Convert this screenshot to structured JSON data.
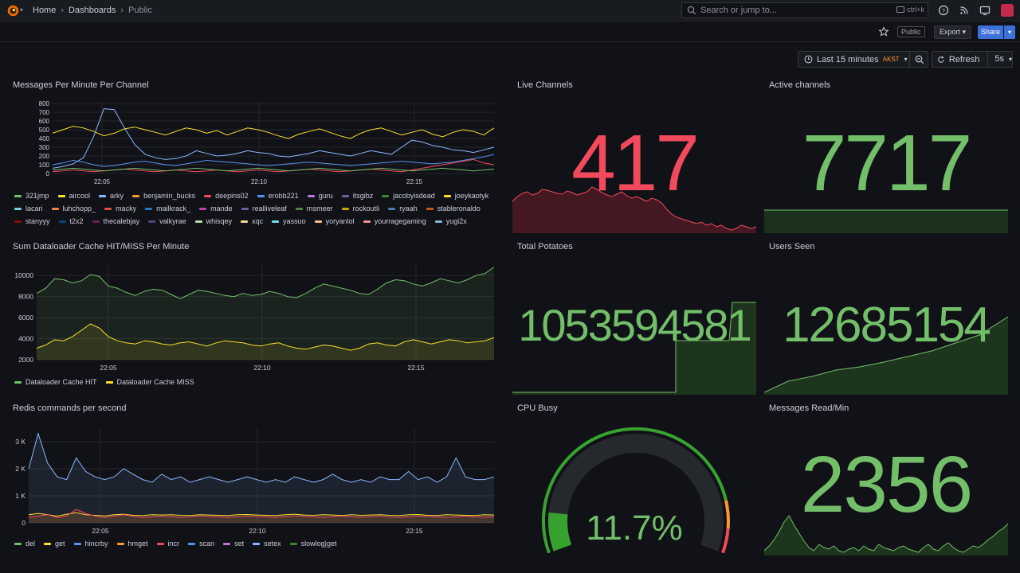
{
  "header": {
    "breadcrumbs": [
      "Home",
      "Dashboards",
      "Public"
    ],
    "search_placeholder": "Search or jump to...",
    "search_shortcut": "ctrl+k"
  },
  "toolbar": {
    "public_badge": "Public",
    "export_label": "Export",
    "share_label": "Share",
    "time_range": "Last 15 minutes",
    "timezone": "AKST",
    "refresh_label": "Refresh",
    "refresh_interval": "5s"
  },
  "colors": {
    "green": "#73bf69",
    "yellow": "#fade2a",
    "blue": "#5794f2",
    "orange": "#ff9830",
    "red": "#f2495c",
    "purple": "#b877d9",
    "accent": "#3d71d9"
  },
  "panels": {
    "messages_per_minute": {
      "title": "Messages Per Minute Per Channel",
      "legend": [
        {
          "name": "321jmp",
          "color": "#73bf69"
        },
        {
          "name": "aircool",
          "color": "#fade2a"
        },
        {
          "name": "arky",
          "color": "#8ab8ff"
        },
        {
          "name": "benjamin_bucks",
          "color": "#ff9830"
        },
        {
          "name": "deepins02",
          "color": "#f2495c"
        },
        {
          "name": "erobb221",
          "color": "#5794f2"
        },
        {
          "name": "guru",
          "color": "#b877d9"
        },
        {
          "name": "itsgibz",
          "color": "#705da0"
        },
        {
          "name": "jacobyisdead",
          "color": "#37872d"
        },
        {
          "name": "joeykaotyk",
          "color": "#fade2a"
        },
        {
          "name": "lacari",
          "color": "#6ed0e0"
        },
        {
          "name": "luhchopp_",
          "color": "#ef843c"
        },
        {
          "name": "macky",
          "color": "#e24d42"
        },
        {
          "name": "mailkrack_",
          "color": "#1f78c1"
        },
        {
          "name": "mande",
          "color": "#ba43a9"
        },
        {
          "name": "realliveleaf",
          "color": "#705da0"
        },
        {
          "name": "rnsmeer",
          "color": "#508642"
        },
        {
          "name": "rockoutli",
          "color": "#cca300"
        },
        {
          "name": "ryaah",
          "color": "#447ebc"
        },
        {
          "name": "stableronaldo",
          "color": "#c15c17"
        },
        {
          "name": "stanyyy",
          "color": "#890f02"
        },
        {
          "name": "t2x2",
          "color": "#0a437c"
        },
        {
          "name": "thecalebjay",
          "color": "#6d1f62"
        },
        {
          "name": "valkyrae",
          "color": "#584477"
        },
        {
          "name": "whisqey",
          "color": "#b7dbab"
        },
        {
          "name": "xqc",
          "color": "#f4d598"
        },
        {
          "name": "yassuo",
          "color": "#70dbed"
        },
        {
          "name": "yoryanlol",
          "color": "#f9ba8f"
        },
        {
          "name": "yourragegaming",
          "color": "#f29191"
        },
        {
          "name": "yugi2x",
          "color": "#82b5d8"
        }
      ]
    },
    "live_channels": {
      "title": "Live Channels",
      "value": "417",
      "color": "#f2495c"
    },
    "active_channels": {
      "title": "Active channels",
      "value": "7717",
      "color": "#73bf69"
    },
    "dataloader": {
      "title": "Sum Dataloader Cache HIT/MISS Per Minute",
      "legend": [
        {
          "name": "Dataloader Cache HIT",
          "color": "#73bf69"
        },
        {
          "name": "Dataloader Cache MISS",
          "color": "#fade2a"
        }
      ]
    },
    "total_potatoes": {
      "title": "Total Potatoes",
      "value": "1053594581",
      "color": "#73bf69"
    },
    "users_seen": {
      "title": "Users Seen",
      "value": "12685154",
      "color": "#73bf69"
    },
    "redis": {
      "title": "Redis commands per second",
      "legend": [
        {
          "name": "del",
          "color": "#73bf69"
        },
        {
          "name": "get",
          "color": "#fade2a"
        },
        {
          "name": "hincrby",
          "color": "#5794f2"
        },
        {
          "name": "hmget",
          "color": "#ff9830"
        },
        {
          "name": "incr",
          "color": "#f2495c"
        },
        {
          "name": "scan",
          "color": "#5794f2"
        },
        {
          "name": "set",
          "color": "#b877d9"
        },
        {
          "name": "setex",
          "color": "#8ab8ff"
        },
        {
          "name": "slowlog|get",
          "color": "#37872d"
        }
      ]
    },
    "cpu_busy": {
      "title": "CPU Busy",
      "value": "11.7%",
      "percent": 11.7
    },
    "messages_read": {
      "title": "Messages Read/Min",
      "value": "2356",
      "color": "#73bf69"
    }
  },
  "chart_data": [
    {
      "type": "line",
      "title": "Messages Per Minute Per Channel",
      "ylim": [
        0,
        800
      ],
      "y_ticks": [
        "800",
        "700",
        "600",
        "500",
        "400",
        "300",
        "200",
        "100",
        "0"
      ],
      "x_ticks": [
        "22:05",
        "22:10",
        "22:15"
      ],
      "series": [
        {
          "name": "aircool",
          "values": [
            460,
            500,
            540,
            520,
            480,
            430,
            460,
            510,
            530,
            500,
            470,
            440,
            480,
            520,
            500,
            460,
            490,
            440,
            480,
            520,
            500,
            470,
            430,
            400,
            450,
            480,
            510,
            470,
            430,
            400,
            460,
            500,
            520,
            480,
            440,
            470,
            500,
            450,
            420,
            470,
            500,
            480,
            440,
            520
          ]
        },
        {
          "name": "arky",
          "values": [
            60,
            80,
            110,
            180,
            420,
            740,
            730,
            520,
            330,
            220,
            180,
            160,
            170,
            200,
            260,
            230,
            200,
            210,
            230,
            260,
            240,
            230,
            200,
            190,
            210,
            230,
            260,
            240,
            220,
            200,
            230,
            260,
            240,
            220,
            300,
            380,
            360,
            320,
            300,
            270,
            260,
            240,
            270,
            300
          ]
        },
        {
          "name": "erobb221",
          "values": [
            100,
            120,
            150,
            130,
            100,
            80,
            90,
            110,
            130,
            140,
            120,
            100,
            90,
            110,
            130,
            150,
            140,
            130,
            120,
            110,
            100,
            90,
            100,
            110,
            120,
            130,
            120,
            110,
            100,
            90,
            100,
            110,
            120,
            130,
            140,
            130,
            120,
            110,
            120,
            130,
            150,
            170,
            190,
            220
          ]
        },
        {
          "name": "deepins02",
          "values": [
            20,
            30,
            40,
            30,
            20,
            30,
            40,
            50,
            40,
            30,
            20,
            30,
            40,
            30,
            20,
            30,
            40,
            30,
            20,
            30,
            40,
            30,
            20,
            30,
            40,
            50,
            40,
            30,
            20,
            30,
            40,
            50,
            40,
            30,
            20,
            40,
            60,
            80,
            100,
            120,
            140,
            160,
            120,
            100
          ]
        },
        {
          "name": "321jmp",
          "values": [
            40,
            50,
            60,
            50,
            40,
            30,
            40,
            50,
            60,
            50,
            40,
            30,
            40,
            50,
            60,
            50,
            40,
            30,
            40,
            50,
            60,
            50,
            40,
            30,
            40,
            50,
            60,
            50,
            40,
            30,
            40,
            50,
            60,
            50,
            40,
            30,
            40,
            50,
            60,
            50,
            40,
            30,
            40,
            50
          ]
        }
      ]
    },
    {
      "type": "area",
      "title": "Sum Dataloader Cache HIT/MISS Per Minute",
      "ylim": [
        2000,
        11000
      ],
      "y_ticks": [
        "10000",
        "8000",
        "6000",
        "4000",
        "2000"
      ],
      "x_ticks": [
        "22:05",
        "22:10",
        "22:15"
      ],
      "series": [
        {
          "name": "Dataloader Cache HIT",
          "values": [
            8300,
            8800,
            9700,
            9600,
            9300,
            9500,
            10100,
            9900,
            9000,
            8800,
            8400,
            8100,
            8500,
            8700,
            8600,
            8200,
            7800,
            8200,
            8600,
            8500,
            8300,
            8100,
            8000,
            8300,
            8100,
            8200,
            8500,
            8300,
            8000,
            7900,
            8300,
            8800,
            9200,
            9000,
            8800,
            8600,
            8300,
            8200,
            8700,
            9300,
            9600,
            9500,
            9200,
            9000,
            9300,
            9700,
            9500,
            9300,
            9600,
            10000,
            10200,
            10800
          ]
        },
        {
          "name": "Dataloader Cache MISS",
          "values": [
            3100,
            3400,
            3900,
            3800,
            4200,
            4800,
            5400,
            5000,
            4200,
            3800,
            3600,
            3500,
            3800,
            3700,
            3500,
            3400,
            3600,
            3700,
            3500,
            3300,
            3600,
            3800,
            3700,
            3600,
            3400,
            3300,
            3500,
            3600,
            3300,
            3100,
            3000,
            3200,
            3400,
            3300,
            3100,
            2900,
            3100,
            3500,
            3600,
            3400,
            3300,
            3700,
            3900,
            3700,
            3500,
            3700,
            3900,
            3800,
            3600,
            3700,
            3800,
            4100
          ]
        }
      ]
    },
    {
      "type": "area",
      "title": "Redis commands per second",
      "ylim": [
        0,
        3500
      ],
      "y_ticks": [
        "3 K",
        "2 K",
        "1 K",
        "0"
      ],
      "x_ticks": [
        "22:05",
        "22:10",
        "22:15"
      ],
      "series": [
        {
          "name": "setex",
          "values": [
            2000,
            3300,
            2200,
            1700,
            1600,
            2400,
            1900,
            1700,
            1600,
            1700,
            2000,
            1800,
            1600,
            1500,
            1800,
            1600,
            1700,
            1500,
            1600,
            1700,
            1600,
            1500,
            1600,
            1700,
            1600,
            1500,
            1600,
            1500,
            1700,
            1600,
            1500,
            1600,
            1800,
            1600,
            1500,
            1600,
            1500,
            1700,
            1600,
            1600,
            1900,
            1600,
            1700,
            1500,
            1700,
            2400,
            1700,
            1600,
            1600,
            1700
          ]
        },
        {
          "name": "get",
          "values": [
            300,
            350,
            300,
            250,
            320,
            380,
            300,
            280,
            260,
            300,
            320,
            280,
            270,
            300,
            290,
            300,
            280,
            270,
            300,
            290,
            280,
            270,
            300,
            310,
            290,
            280,
            270,
            300,
            320,
            290,
            280,
            300,
            290,
            270,
            300,
            280,
            290,
            300,
            280,
            270,
            300,
            310,
            280,
            270,
            300,
            290,
            280,
            270,
            300,
            290
          ]
        },
        {
          "name": "incr",
          "values": [
            200,
            250,
            300,
            200,
            250,
            500,
            350,
            250,
            200,
            250,
            300,
            250,
            200,
            220,
            250,
            230,
            200,
            220,
            250,
            240,
            220,
            200,
            230,
            250,
            240,
            220,
            200,
            230,
            260,
            240,
            220,
            200,
            230,
            250,
            220,
            210,
            230,
            250,
            220,
            200,
            230,
            250,
            240,
            220,
            200,
            230,
            250,
            220,
            210,
            230
          ]
        }
      ]
    }
  ]
}
